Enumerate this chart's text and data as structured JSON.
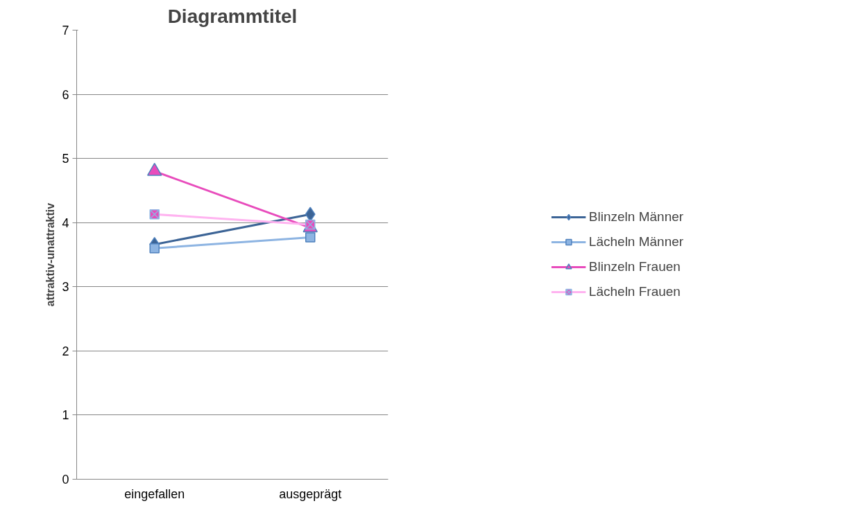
{
  "chart_data": {
    "type": "line",
    "title": "Diagrammtitel",
    "ylabel": "attraktiv-unattraktiv",
    "categories": [
      "eingefallen",
      "ausgeprägt"
    ],
    "series": [
      {
        "name": "Blinzeln Männer",
        "color": "#3c6496",
        "marker": "diamond",
        "values": [
          3.66,
          4.13
        ]
      },
      {
        "name": "Lächeln Männer",
        "color": "#8db4e2",
        "marker": "square",
        "values": [
          3.6,
          3.77
        ]
      },
      {
        "name": "Blinzeln Frauen",
        "color": "#e84cbc",
        "marker": "triangle",
        "values": [
          4.8,
          3.92
        ]
      },
      {
        "name": "Lächeln Frauen",
        "color": "#ffb3f0",
        "marker": "cross",
        "values": [
          4.13,
          3.97
        ]
      }
    ],
    "ylim": [
      0,
      7
    ],
    "yticks": [
      0,
      1,
      2,
      3,
      4,
      5,
      6,
      7
    ],
    "grid": "y",
    "legend": "right"
  }
}
